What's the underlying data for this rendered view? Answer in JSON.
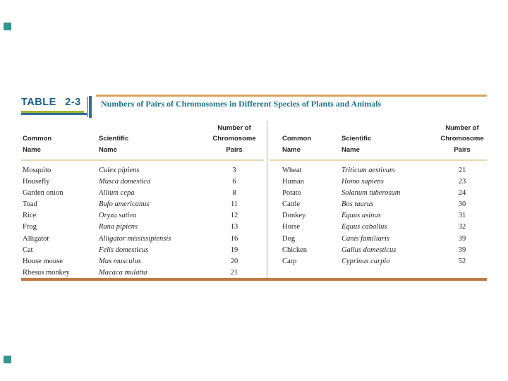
{
  "colors": {
    "accent_teal_square": "#36958e",
    "label_blue": "#1b6184",
    "title_teal": "#1d7489",
    "bracket_green": "#a6b327",
    "bracket_blue": "#2d6f9f",
    "rule_tan": "#d8a45c",
    "rule_bottom_brown": "#bf7b45"
  },
  "table": {
    "label": "TABLE 2-3",
    "title": "Numbers of Pairs of Chromosomes in Different Species of Plants and Animals",
    "headers": {
      "common": [
        "Common",
        "Name"
      ],
      "scientific": [
        "Scientific",
        "Name"
      ],
      "pairs": [
        "Number of",
        "Chromosome",
        "Pairs"
      ]
    },
    "left_rows": [
      {
        "common": "Mosquito",
        "scientific": "Culex pipiens",
        "pairs": "3"
      },
      {
        "common": "Housefly",
        "scientific": "Musca domestica",
        "pairs": "6"
      },
      {
        "common": "Garden onion",
        "scientific": "Allium cepa",
        "pairs": "8"
      },
      {
        "common": "Toad",
        "scientific": "Bufo americanus",
        "pairs": "11"
      },
      {
        "common": "Rice",
        "scientific": "Oryza sativa",
        "pairs": "12"
      },
      {
        "common": "Frog",
        "scientific": "Rana pipiens",
        "pairs": "13"
      },
      {
        "common": "Alligator",
        "scientific": "Alligator mississipiensis",
        "pairs": "16"
      },
      {
        "common": "Cat",
        "scientific": "Felis domesticus",
        "pairs": "19"
      },
      {
        "common": "House mouse",
        "scientific": "Mus musculus",
        "pairs": "20"
      },
      {
        "common": "Rhesus monkey",
        "scientific": "Macaca mulatta",
        "pairs": "21"
      }
    ],
    "right_rows": [
      {
        "common": "Wheat",
        "scientific": "Triticum aestivum",
        "pairs": "21"
      },
      {
        "common": "Human",
        "scientific": "Homo sapiens",
        "pairs": "23"
      },
      {
        "common": "Potato",
        "scientific": "Solanum tuberosum",
        "pairs": "24"
      },
      {
        "common": "Cattle",
        "scientific": "Bos taurus",
        "pairs": "30"
      },
      {
        "common": "Donkey",
        "scientific": "Equus asinus",
        "pairs": "31"
      },
      {
        "common": "Horse",
        "scientific": "Equus caballus",
        "pairs": "32"
      },
      {
        "common": "Dog",
        "scientific": "Canis familiaris",
        "pairs": "39"
      },
      {
        "common": "Chicken",
        "scientific": "Gallus domesticus",
        "pairs": "39"
      },
      {
        "common": "Carp",
        "scientific": "Cyprinus carpio",
        "pairs": "52"
      }
    ]
  }
}
